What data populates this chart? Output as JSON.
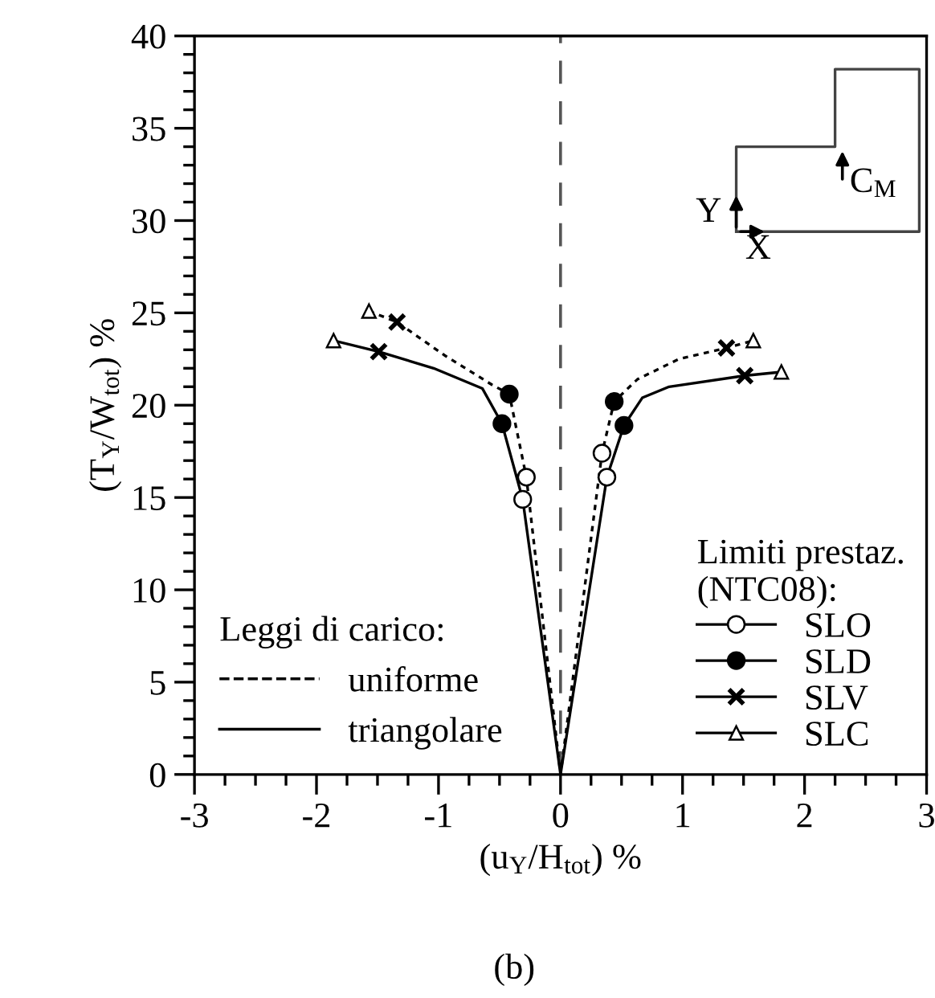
{
  "chart_data": {
    "type": "line",
    "xlabel": "(u$_{Y}$/H$_{tot}$) %",
    "ylabel": "(T$_{Y}$/W$_{tot}$) %",
    "xlim": [
      -3,
      3
    ],
    "xticks": [
      -3,
      -2,
      -1,
      0,
      1,
      2,
      3
    ],
    "ylim": [
      0,
      40
    ],
    "yticks": [
      0,
      5,
      10,
      15,
      20,
      25,
      30,
      35,
      40
    ],
    "grid": false,
    "legend": "bottom",
    "legend_title": [
      "Leggi di carico:",
      "Limiti prestaz.\n(NTC08):"
    ],
    "ref_lines": [
      {
        "axis": "x",
        "value": 0,
        "color": "#555555",
        "line_style": "dashed"
      }
    ],
    "annotations": [
      "Y",
      "X",
      "C$_{M}$",
      "(b)"
    ],
    "series": [
      {
        "name": "uniforme",
        "line_style": "dotted",
        "color": "#000000",
        "x": [
          -1.57,
          -1.34,
          -0.95,
          -0.56,
          -0.42,
          -0.28,
          0,
          0.34,
          0.44,
          0.63,
          0.97,
          1.36,
          1.58
        ],
        "values": [
          25.1,
          24.5,
          22.7,
          21.1,
          20.6,
          16.1,
          0,
          17.4,
          20.2,
          21.4,
          22.5,
          23.1,
          23.5
        ]
      },
      {
        "name": "triangolare",
        "line_style": "solid",
        "color": "#000000",
        "x": [
          -1.86,
          -1.49,
          -1.04,
          -0.64,
          -0.48,
          -0.31,
          0,
          0.38,
          0.52,
          0.67,
          0.89,
          1.51,
          1.81
        ],
        "values": [
          23.5,
          22.9,
          22.0,
          20.9,
          19.0,
          14.9,
          0,
          16.1,
          18.9,
          20.4,
          21.0,
          21.6,
          21.8
        ]
      },
      {
        "name": "SLO",
        "type": "scatter",
        "marker": "circle",
        "color": "#ffffff",
        "x": [
          -0.28,
          -0.31,
          0.34,
          0.38
        ],
        "values": [
          16.1,
          14.9,
          17.4,
          16.1
        ]
      },
      {
        "name": "SLD",
        "type": "scatter",
        "marker": "circle",
        "color": "#000000",
        "x": [
          -0.42,
          -0.48,
          0.44,
          0.52
        ],
        "values": [
          20.6,
          19.0,
          20.2,
          18.9
        ]
      },
      {
        "name": "SLV",
        "type": "scatter",
        "marker": "cross",
        "color": "#000000",
        "x": [
          -1.34,
          -1.49,
          1.36,
          1.51
        ],
        "values": [
          24.5,
          22.9,
          23.1,
          21.6
        ]
      },
      {
        "name": "SLC",
        "type": "scatter",
        "marker": "triangle",
        "color": "#ffffff",
        "x": [
          -1.57,
          -1.86,
          1.58,
          1.81
        ],
        "values": [
          25.1,
          23.5,
          23.5,
          21.8
        ]
      }
    ]
  }
}
